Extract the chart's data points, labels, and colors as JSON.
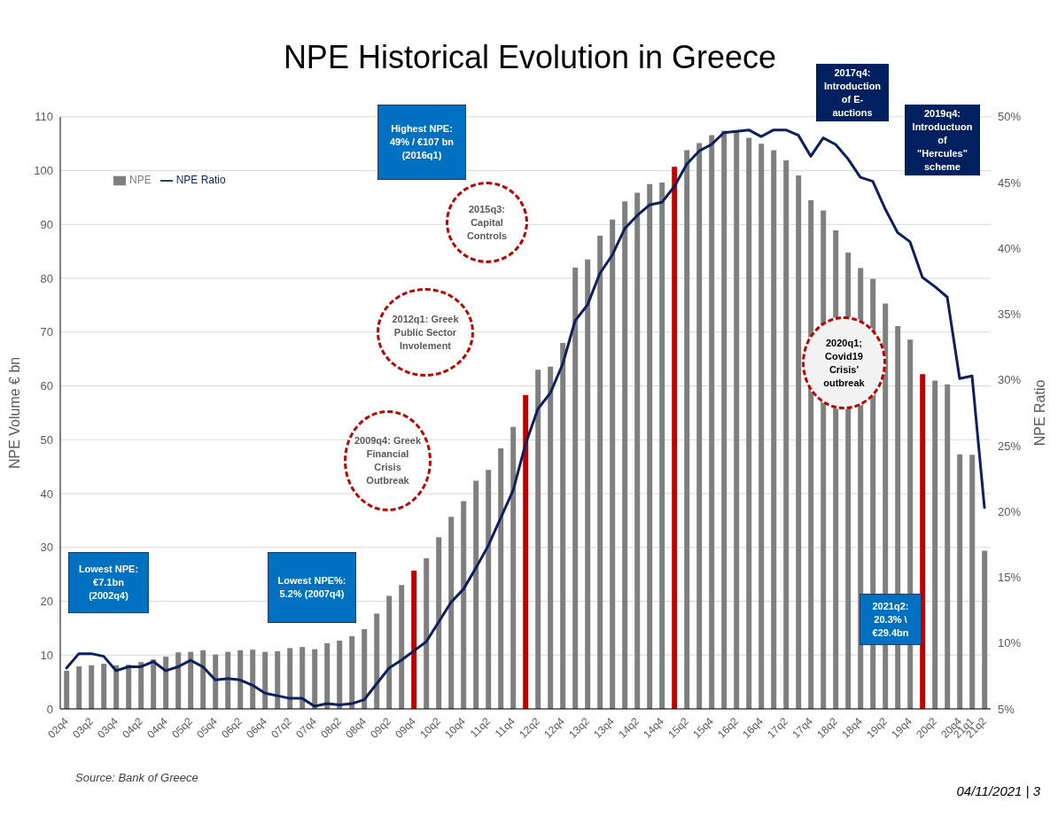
{
  "chart_data": {
    "type": "bar",
    "title": "NPE Historical Evolution in Greece",
    "ylabel": "NPE Volume € bn",
    "y2label": "NPE Ratio",
    "categories": [
      "02q4",
      null,
      "03q2",
      null,
      "03q4",
      null,
      "04q2",
      null,
      "04q4",
      null,
      "05q2",
      null,
      "05q4",
      null,
      "06q2",
      null,
      "06q4",
      null,
      "07q2",
      null,
      "07q4",
      null,
      "08q2",
      null,
      "08q4",
      null,
      "09q2",
      null,
      "09q4",
      null,
      "10q2",
      null,
      "10q4",
      null,
      "11q2",
      null,
      "11q4",
      null,
      "12q2",
      null,
      "12q4",
      null,
      "13q2",
      null,
      "13q4",
      null,
      "14q2",
      null,
      "14q4",
      null,
      "15q2",
      null,
      "15q4",
      null,
      "16q2",
      null,
      "16q4",
      null,
      "17q2",
      null,
      "17q4",
      null,
      "18q2",
      null,
      "18q4",
      null,
      "19q2",
      null,
      "19q4",
      null,
      "20q2",
      null,
      "20q4",
      "21q1",
      "21q2"
    ],
    "series": [
      {
        "name": "NPE",
        "color": "#7f7f7f",
        "colors": [
          "#7f7f7f",
          "#7f7f7f",
          "#7f7f7f",
          "#7f7f7f",
          "#7f7f7f",
          "#7f7f7f",
          "#7f7f7f",
          "#7f7f7f",
          "#7f7f7f",
          "#7f7f7f",
          "#7f7f7f",
          "#7f7f7f",
          "#7f7f7f",
          "#7f7f7f",
          "#7f7f7f",
          "#7f7f7f",
          "#7f7f7f",
          "#7f7f7f",
          "#7f7f7f",
          "#7f7f7f",
          "#7f7f7f",
          "#7f7f7f",
          "#7f7f7f",
          "#7f7f7f",
          "#7f7f7f",
          "#7f7f7f",
          "#7f7f7f",
          "#7f7f7f",
          "#c00000",
          "#7f7f7f",
          "#7f7f7f",
          "#7f7f7f",
          "#7f7f7f",
          "#7f7f7f",
          "#7f7f7f",
          "#7f7f7f",
          "#7f7f7f",
          "#c00000",
          "#7f7f7f",
          "#7f7f7f",
          "#7f7f7f",
          "#7f7f7f",
          "#7f7f7f",
          "#7f7f7f",
          "#7f7f7f",
          "#7f7f7f",
          "#7f7f7f",
          "#7f7f7f",
          "#7f7f7f",
          "#c00000",
          "#7f7f7f",
          "#7f7f7f",
          "#7f7f7f",
          "#7f7f7f",
          "#7f7f7f",
          "#7f7f7f",
          "#7f7f7f",
          "#7f7f7f",
          "#7f7f7f",
          "#7f7f7f",
          "#7f7f7f",
          "#7f7f7f",
          "#7f7f7f",
          "#7f7f7f",
          "#7f7f7f",
          "#7f7f7f",
          "#7f7f7f",
          "#7f7f7f",
          "#7f7f7f",
          "#c00000",
          "#7f7f7f",
          "#7f7f7f",
          "#7f7f7f",
          "#7f7f7f",
          "#7f7f7f"
        ],
        "values": [
          7.1,
          7.9,
          8.1,
          8.4,
          8.1,
          8.2,
          8.7,
          9.2,
          9.7,
          10.5,
          10.6,
          10.9,
          10.1,
          10.6,
          10.9,
          11.0,
          10.6,
          10.7,
          11.3,
          11.5,
          11.1,
          12.2,
          12.7,
          13.5,
          14.8,
          17.7,
          21.0,
          23.0,
          25.7,
          28.0,
          31.9,
          35.7,
          38.6,
          42.4,
          44.4,
          48.4,
          52.4,
          58.3,
          63.0,
          63.6,
          68.0,
          82.0,
          83.5,
          87.9,
          90.9,
          94.3,
          95.9,
          97.5,
          97.8,
          100.7,
          103.8,
          105.1,
          106.6,
          107.4,
          107.4,
          106.1,
          105.0,
          103.8,
          101.9,
          99.1,
          94.5,
          92.6,
          88.9,
          84.8,
          81.9,
          79.9,
          75.3,
          71.1,
          68.6,
          62.2,
          61.0,
          60.3,
          47.3,
          47.2,
          29.4
        ]
      },
      {
        "name": "NPE Ratio",
        "type": "line",
        "axis": "y2",
        "color": "#0d1f5c",
        "values": [
          8.1,
          9.2,
          9.2,
          9.0,
          7.9,
          8.2,
          8.2,
          8.6,
          7.9,
          8.2,
          8.7,
          8.2,
          7.2,
          7.3,
          7.2,
          6.8,
          6.2,
          6.0,
          5.8,
          5.8,
          5.2,
          5.4,
          5.3,
          5.4,
          5.7,
          6.9,
          8.1,
          8.7,
          9.4,
          10.1,
          11.6,
          13.1,
          14.1,
          15.7,
          17.4,
          19.5,
          21.6,
          25.1,
          27.8,
          29.0,
          31.2,
          34.5,
          35.7,
          38.1,
          39.5,
          41.5,
          42.5,
          43.3,
          43.5,
          44.7,
          46.4,
          47.4,
          47.9,
          48.8,
          48.9,
          49.0,
          48.5,
          49.0,
          49.0,
          48.6,
          47.0,
          48.4,
          47.9,
          46.8,
          45.4,
          45.1,
          43.0,
          41.2,
          40.5,
          37.8,
          37.1,
          36.3,
          30.1,
          30.3,
          20.3
        ]
      }
    ],
    "ylim": [
      0,
      110
    ],
    "yticks": [
      0,
      10,
      20,
      30,
      40,
      50,
      60,
      70,
      80,
      90,
      100,
      110
    ],
    "y2lim": [
      5,
      50
    ],
    "y2ticks": [
      {
        "value": 5,
        "label": "5%"
      },
      {
        "value": 10,
        "label": "10%"
      },
      {
        "value": 15,
        "label": "15%"
      },
      {
        "value": 20,
        "label": "20%"
      },
      {
        "value": 25,
        "label": "25%"
      },
      {
        "value": 30,
        "label": "30%"
      },
      {
        "value": 35,
        "label": "35%"
      },
      {
        "value": 40,
        "label": "40%"
      },
      {
        "value": 45,
        "label": "45%"
      },
      {
        "value": 50,
        "label": "50%"
      }
    ],
    "grid": "y",
    "legend": "top left",
    "annotations": [
      "Lowest NPE: €7.1bn (2002q4)",
      "Lowest NPE%: 5.2% (2007q4)",
      "2009q4: Greek Financial Crisis Outbreak",
      "2012q1: Greek Public Sector Involement",
      "2015q3: Capital Controls",
      "Highest NPE: 49% / €107 bn (2016q1)",
      "2017q4: Introduction of E-auctions",
      "2019q4: Introductuon of \"Hercules\" scheme",
      "2020q1; Covid19 Crisis' outbreak",
      "2021q2: 20.3% \\ €29.4bn",
      "Source: Bank of Greece",
      "04/11/2021 | 3"
    ]
  }
}
